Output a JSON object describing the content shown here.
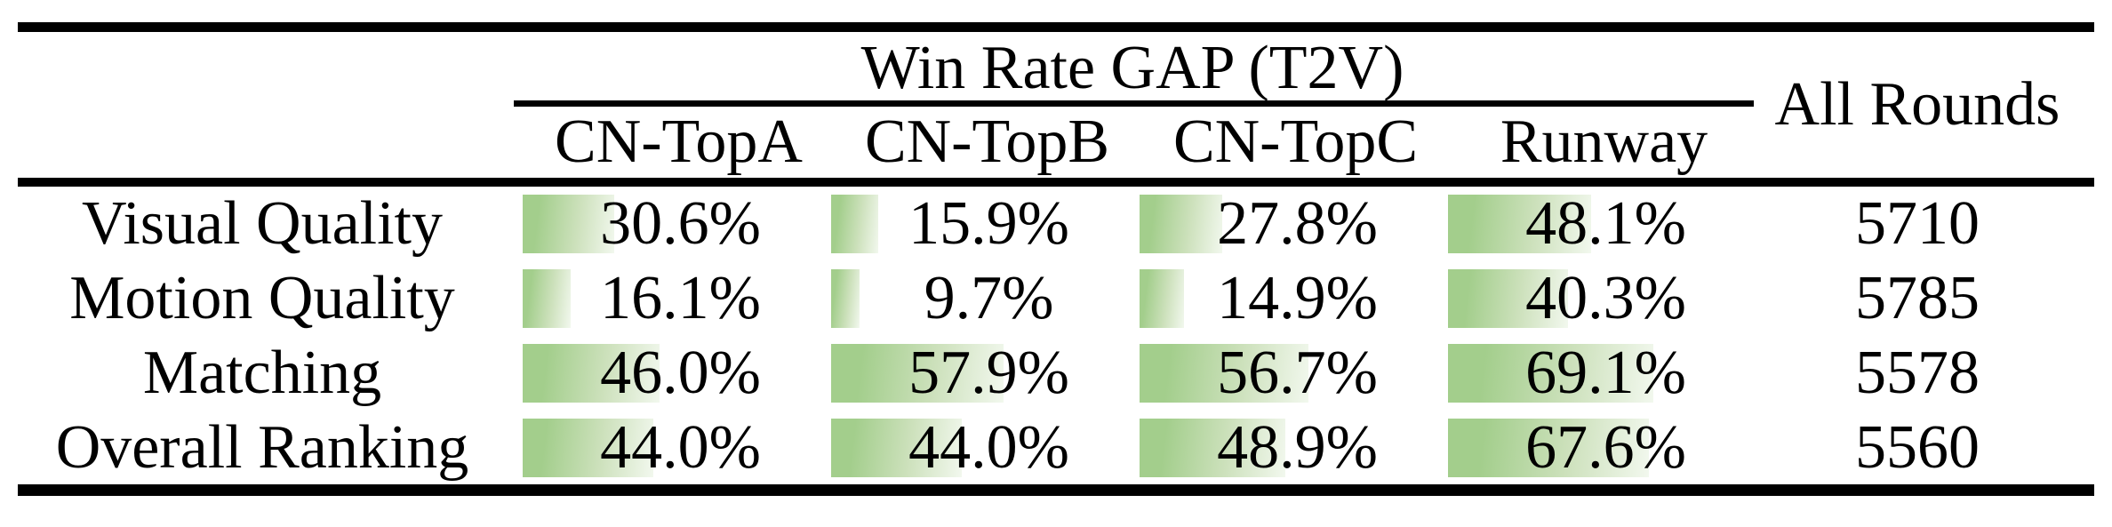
{
  "colors": {
    "bar-start": "#a3ce8c",
    "bar-mid": "#cde1bc",
    "bar-end": "#f2f8ee",
    "rule": "#000000",
    "text": "#000000"
  },
  "table": {
    "group_header": "Win Rate GAP (T2V)",
    "all_rounds_header": "All Rounds",
    "columns": [
      "CN-TopA",
      "CN-TopB",
      "CN-TopC",
      "Runway"
    ],
    "rows": [
      {
        "label": "Visual Quality",
        "gaps": [
          "30.6%",
          "15.9%",
          "27.8%",
          "48.1%"
        ],
        "all_rounds": "5710"
      },
      {
        "label": "Motion Quality",
        "gaps": [
          "16.1%",
          "9.7%",
          "14.9%",
          "40.3%"
        ],
        "all_rounds": "5785"
      },
      {
        "label": "Matching",
        "gaps": [
          "46.0%",
          "57.9%",
          "56.7%",
          "69.1%"
        ],
        "all_rounds": "5578"
      },
      {
        "label": "Overall Ranking",
        "gaps": [
          "44.0%",
          "44.0%",
          "48.9%",
          "67.6%"
        ],
        "all_rounds": "5560"
      }
    ]
  },
  "chart_data": {
    "type": "table",
    "title": "Win Rate GAP (T2V)",
    "categories": [
      "CN-TopA",
      "CN-TopB",
      "CN-TopC",
      "Runway"
    ],
    "series": [
      {
        "name": "Visual Quality",
        "values": [
          30.6,
          15.9,
          27.8,
          48.1
        ]
      },
      {
        "name": "Motion Quality",
        "values": [
          16.1,
          9.7,
          14.9,
          40.3
        ]
      },
      {
        "name": "Matching",
        "values": [
          46.0,
          57.9,
          56.7,
          69.1
        ]
      },
      {
        "name": "Overall Ranking",
        "values": [
          44.0,
          44.0,
          48.9,
          67.6
        ]
      }
    ],
    "all_rounds_column": {
      "label": "All Rounds",
      "values": [
        5710,
        5785,
        5578,
        5560
      ]
    },
    "value_unit": "%",
    "bar_scale": [
      0,
      100
    ],
    "bar_style": "green gradient data bar, left-aligned, width proportional to value"
  }
}
